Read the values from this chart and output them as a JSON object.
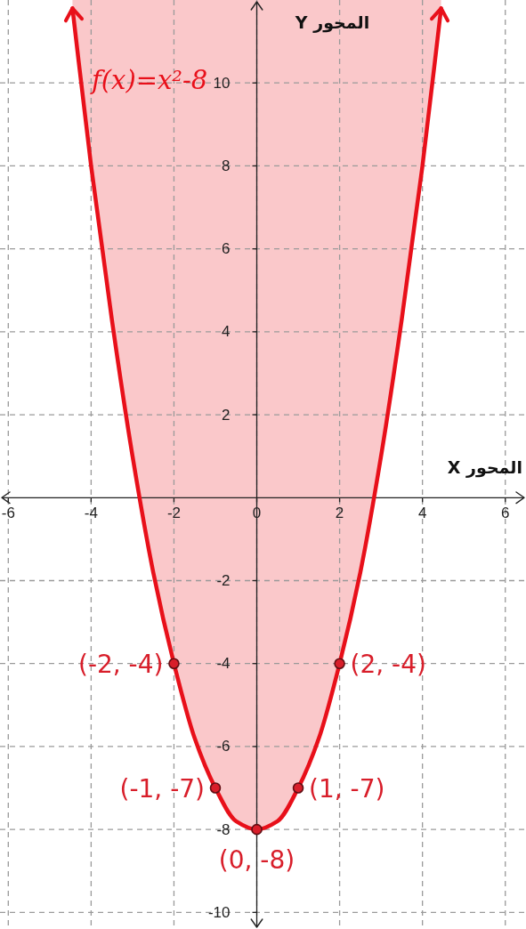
{
  "chart_data": {
    "type": "line",
    "xlabel": "المحور X",
    "ylabel": "المحور Y",
    "xlim": [
      -6.2,
      6.5
    ],
    "ylim": [
      -10.4,
      12
    ],
    "xticks": [
      -6,
      -4,
      -2,
      0,
      2,
      4,
      6
    ],
    "yticks": [
      -10,
      -8,
      -6,
      -4,
      -2,
      2,
      4,
      6,
      8,
      10
    ],
    "grid": true,
    "series": [
      {
        "name": "f(x)=x²-8",
        "color": "#e8101a",
        "line_style": "solid",
        "x": [
          -4.45,
          -4,
          -3.5,
          -3,
          -2.5,
          -2,
          -1.5,
          -1,
          -0.5,
          0,
          0.5,
          1,
          1.5,
          2,
          2.5,
          3,
          3.5,
          4,
          4.45
        ],
        "values": [
          11.8,
          8,
          4.3,
          1,
          -1.8,
          -4,
          -5.8,
          -7,
          -7.8,
          -8,
          -7.8,
          -7,
          -5.8,
          -4,
          -1.8,
          1,
          4.3,
          8,
          11.8
        ],
        "lower": [
          11.8,
          8,
          4.3,
          1,
          -1.8,
          -4,
          -5.8,
          -7,
          -7.8,
          -8,
          -7.8,
          -7,
          -5.8,
          -4,
          -1.8,
          1,
          4.3,
          8,
          11.8
        ],
        "upper": [
          12,
          12,
          12,
          12,
          12,
          12,
          12,
          12,
          12,
          12,
          12,
          12,
          12,
          12,
          12,
          12,
          12,
          12,
          12
        ]
      },
      {
        "type": "scatter",
        "color": "#d81e2a",
        "marker": "circle",
        "x": [
          -2,
          -1,
          0,
          1,
          2
        ],
        "values": [
          -4,
          -7,
          -8,
          -7,
          -4
        ],
        "value_labels": [
          "(-2, -4)",
          "(-1, -7)",
          "(0, -8)",
          "(1, -7)",
          "(2, -4)"
        ]
      }
    ]
  }
}
